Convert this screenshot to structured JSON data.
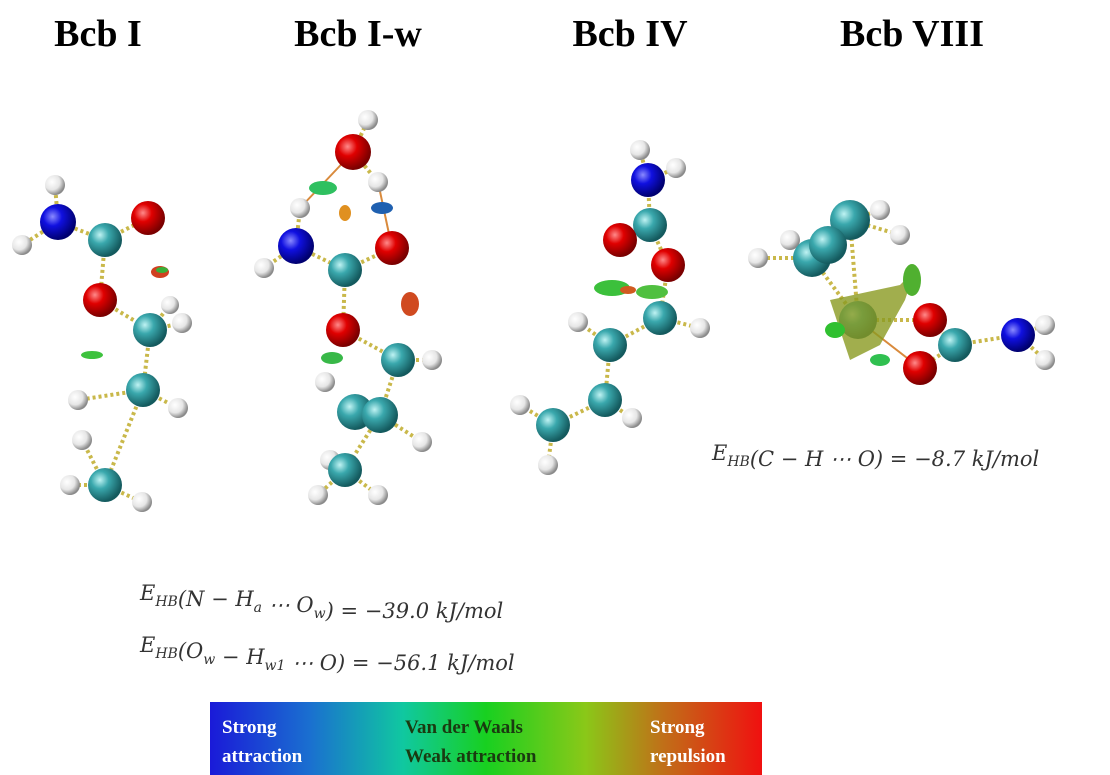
{
  "panels": [
    {
      "title": "Bcb I"
    },
    {
      "title": "Bcb I-w"
    },
    {
      "title": "Bcb IV"
    },
    {
      "title": "Bcb VIII"
    }
  ],
  "equations": [
    {
      "parts": [
        {
          "text": "E",
          "sub": "HB"
        },
        {
          "text": "(C − H ⋯ O) = −8.7 kJ/mol"
        }
      ]
    },
    {
      "parts": [
        {
          "text": "E",
          "sub": "HB"
        },
        {
          "text": "(N − H",
          "sub": "a"
        },
        {
          "text": " ⋯ O",
          "sub": "w"
        },
        {
          "text": ") = −39.0 kJ/mol"
        }
      ]
    },
    {
      "parts": [
        {
          "text": "E",
          "sub": "HB"
        },
        {
          "text": "(O",
          "sub": "w"
        },
        {
          "text": " − H",
          "sub": "w1"
        },
        {
          "text": " ⋯ O) = −56.1 kJ/mol"
        }
      ]
    }
  ],
  "colorbar": {
    "left": [
      "Strong",
      "attraction"
    ],
    "middle": [
      "Van der Waals",
      "Weak attraction"
    ],
    "right": [
      "Strong",
      "repulsion"
    ]
  }
}
